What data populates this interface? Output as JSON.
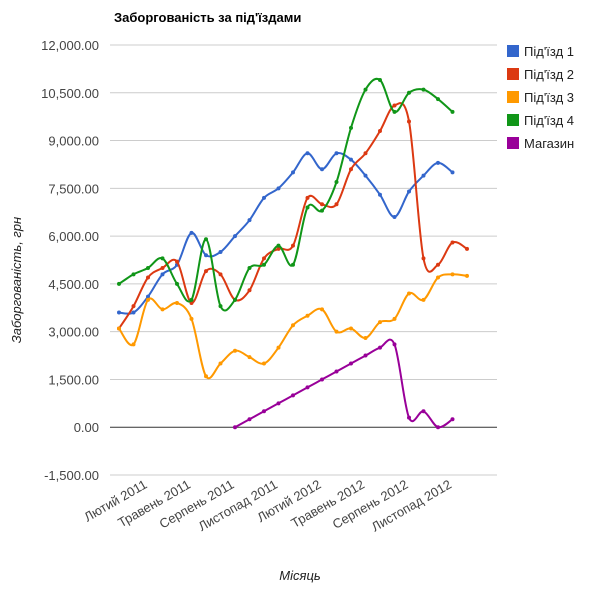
{
  "chart_data": {
    "type": "line",
    "title": "Заборгованість за під'їздами",
    "xlabel": "Місяць",
    "ylabel": "Заборгованість, грн",
    "ylim": [
      -1500,
      12000
    ],
    "yticks": [
      "12,000.00",
      "10,500.00",
      "9,000.00",
      "7,500.00",
      "6,000.00",
      "4,500.00",
      "3,000.00",
      "1,500.00",
      "0.00",
      "-1,500.00"
    ],
    "ytick_values": [
      12000,
      10500,
      9000,
      7500,
      6000,
      4500,
      3000,
      1500,
      0,
      -1500
    ],
    "xtick_labels": [
      "Лютий 2011",
      "Травень 2011",
      "Серпень 2011",
      "Листопад 2011",
      "Лютий 2012",
      "Травень 2012",
      "Серпень 2012",
      "Листопад 2012"
    ],
    "xtick_index": [
      2,
      5,
      8,
      11,
      14,
      17,
      20,
      23
    ],
    "categories": [
      "Грудень 2010",
      "Січень 2011",
      "Лютий 2011",
      "Березень 2011",
      "Квітень 2011",
      "Травень 2011",
      "Червень 2011",
      "Липень 2011",
      "Серпень 2011",
      "Вересень 2011",
      "Жовтень 2011",
      "Листопад 2011",
      "Грудень 2011",
      "Січень 2012",
      "Лютий 2012",
      "Березень 2012",
      "Квітень 2012",
      "Травень 2012",
      "Червень 2012",
      "Липень 2012",
      "Серпень 2012",
      "Вересень 2012",
      "Жовтень 2012",
      "Листопад 2012",
      "Грудень 2012",
      "Січень 2013"
    ],
    "grid": true,
    "legend_position": "right",
    "series": [
      {
        "name": "Під'їзд 1",
        "color": "#3366cc",
        "values": [
          3600,
          3600,
          4100,
          4800,
          5100,
          6100,
          5400,
          5500,
          6000,
          6500,
          7200,
          7500,
          8000,
          8600,
          8100,
          8600,
          8400,
          7900,
          7300,
          6600,
          7400,
          7900,
          8300,
          8000,
          null,
          null
        ]
      },
      {
        "name": "Під'їзд 2",
        "color": "#dc3912",
        "values": [
          3100,
          3800,
          4700,
          5000,
          5200,
          3900,
          4900,
          4800,
          4000,
          4300,
          5300,
          5600,
          5700,
          7200,
          7000,
          7000,
          8100,
          8600,
          9300,
          10100,
          9600,
          5300,
          5100,
          5800,
          5600,
          null
        ]
      },
      {
        "name": "Під'їзд 3",
        "color": "#ff9900",
        "values": [
          3100,
          2600,
          4000,
          3700,
          3900,
          3400,
          1600,
          2000,
          2400,
          2200,
          2000,
          2500,
          3200,
          3500,
          3700,
          3000,
          3100,
          2800,
          3300,
          3400,
          4200,
          4000,
          4700,
          4800,
          4750,
          null
        ]
      },
      {
        "name": "Під'їзд 4",
        "color": "#109618",
        "values": [
          4500,
          4800,
          5000,
          5300,
          4500,
          4000,
          5900,
          3800,
          4000,
          5000,
          5100,
          5700,
          5100,
          6900,
          6800,
          7700,
          9400,
          10600,
          10900,
          9900,
          10500,
          10600,
          10300,
          9900,
          null,
          null
        ]
      },
      {
        "name": "Магазин",
        "color": "#990099",
        "values": [
          null,
          null,
          null,
          null,
          null,
          null,
          null,
          null,
          0,
          250,
          500,
          750,
          1000,
          1250,
          1500,
          1750,
          2000,
          2250,
          2500,
          2600,
          300,
          500,
          0,
          250,
          null,
          null
        ]
      }
    ]
  }
}
